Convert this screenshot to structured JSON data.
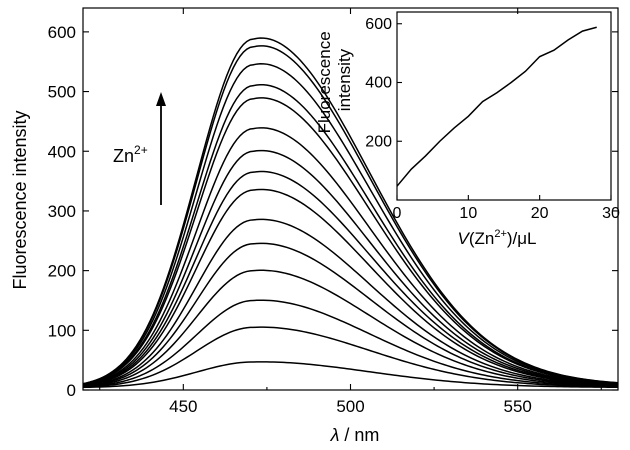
{
  "chart_data": [
    {
      "type": "line",
      "xlabel": "λ / nm",
      "xlabel_symbol": "λ",
      "xlabel_unit": " / nm",
      "ylabel": "Fluorescence intensity",
      "xlim": [
        420,
        580
      ],
      "ylim": [
        0,
        640
      ],
      "xticks": [
        450,
        500,
        550
      ],
      "yticks": [
        0,
        100,
        200,
        300,
        400,
        500,
        600
      ],
      "annotation": {
        "text": "Zn2+",
        "base": "Zn",
        "sup": "2+"
      },
      "series": [
        {
          "peak_x": 471,
          "peak_y": 47
        },
        {
          "peak_x": 471,
          "peak_y": 105
        },
        {
          "peak_x": 471,
          "peak_y": 150
        },
        {
          "peak_x": 471,
          "peak_y": 200
        },
        {
          "peak_x": 471,
          "peak_y": 245
        },
        {
          "peak_x": 471,
          "peak_y": 285
        },
        {
          "peak_x": 471,
          "peak_y": 335
        },
        {
          "peak_x": 471,
          "peak_y": 365
        },
        {
          "peak_x": 471,
          "peak_y": 400
        },
        {
          "peak_x": 471,
          "peak_y": 438
        },
        {
          "peak_x": 471,
          "peak_y": 488
        },
        {
          "peak_x": 471,
          "peak_y": 510
        },
        {
          "peak_x": 471,
          "peak_y": 545
        },
        {
          "peak_x": 471,
          "peak_y": 575
        },
        {
          "peak_x": 471,
          "peak_y": 588
        }
      ]
    },
    {
      "type": "line",
      "xlabel": "V(Zn2+)/μL",
      "xlabel_parts": {
        "v": "V",
        "open": "(Zn",
        "sup": "2+",
        "close": ")/μL"
      },
      "ylabel": "Fluorescence intensity",
      "ylabel_lines": [
        "Fluorescence",
        "intensity"
      ],
      "xlim": [
        0,
        30
      ],
      "ylim": [
        0,
        640
      ],
      "xticks": [
        0,
        10,
        20,
        30
      ],
      "yticks": [
        200,
        400,
        600
      ],
      "x": [
        0,
        2,
        4,
        6,
        8,
        10,
        12,
        14,
        16,
        18,
        20,
        22,
        24,
        26,
        28
      ],
      "y": [
        47,
        105,
        150,
        200,
        245,
        285,
        335,
        365,
        400,
        438,
        488,
        510,
        545,
        575,
        588
      ]
    }
  ]
}
